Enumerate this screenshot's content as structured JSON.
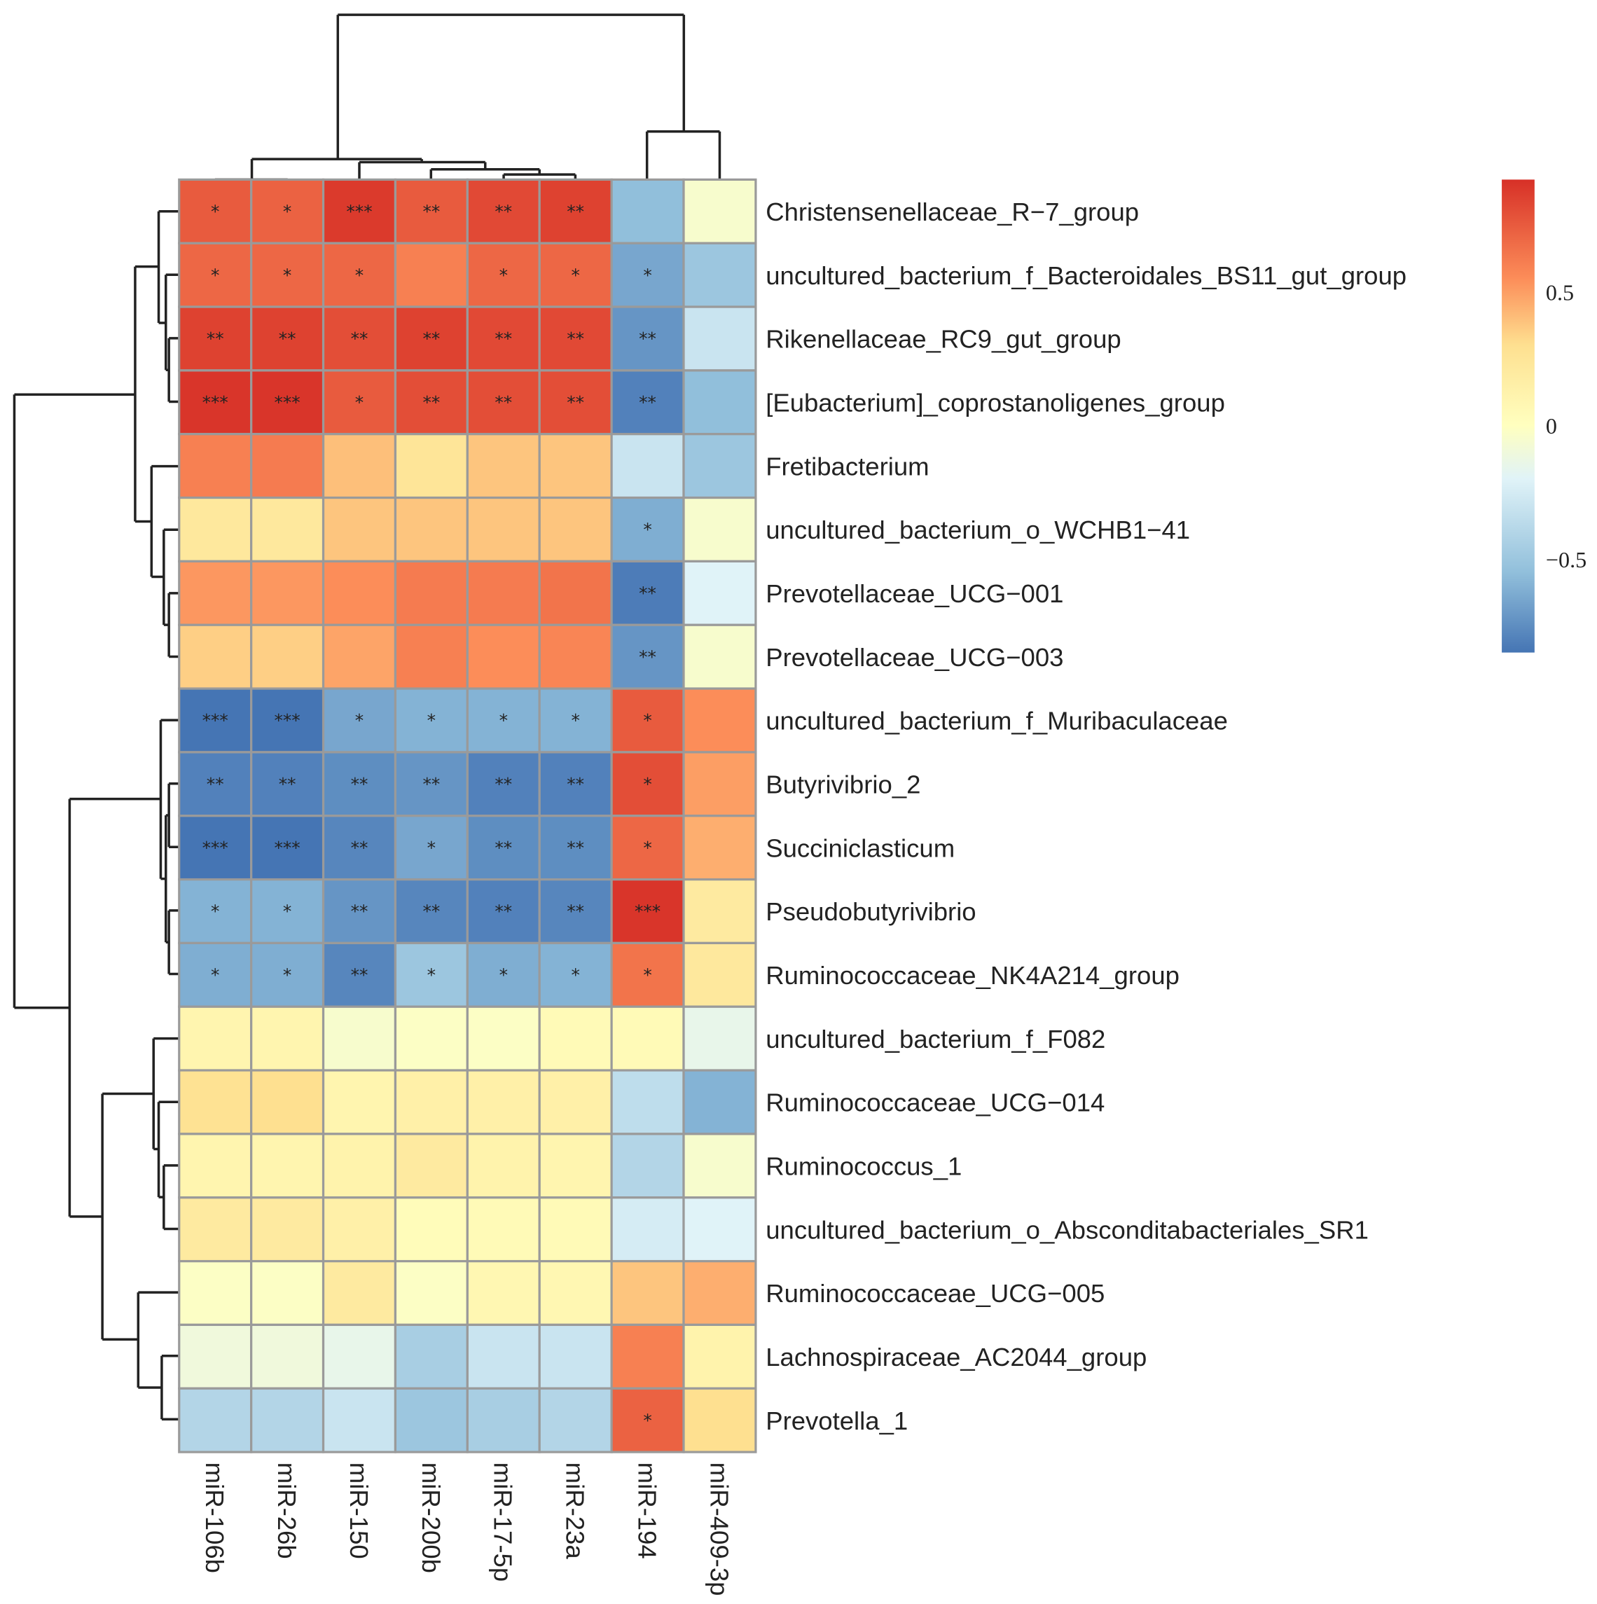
{
  "chart_data": {
    "type": "heatmap",
    "title": "",
    "columns": [
      "miR-106b",
      "miR-26b",
      "miR-150",
      "miR-200b",
      "miR-17-5p",
      "miR-23a",
      "miR-194",
      "miR-409-3p"
    ],
    "rows": [
      "Christensenellaceae_R−7_group",
      "uncultured_bacterium_f_Bacteroidales_BS11_gut_group",
      "Rikenellaceae_RC9_gut_group",
      "[Eubacterium]_coprostanoligenes_group",
      "Fretibacterium",
      "uncultured_bacterium_o_WCHB1−41",
      "Prevotellaceae_UCG−001",
      "Prevotellaceae_UCG−003",
      "uncultured_bacterium_f_Muribaculaceae",
      "Butyrivibrio_2",
      "Succiniclasticum",
      "Pseudobutyrivibrio",
      "Ruminococcaceae_NK4A214_group",
      "uncultured_bacterium_f_F082",
      "Ruminococcaceae_UCG−014",
      "Ruminococcus_1",
      "uncultured_bacterium_o_Absconditabacteriales_SR1",
      "Ruminococcaceae_UCG−005",
      "Lachnospiraceae_AC2044_group",
      "Prevotella_1"
    ],
    "values": [
      [
        0.75,
        0.72,
        0.88,
        0.75,
        0.82,
        0.85,
        -0.55,
        -0.05
      ],
      [
        0.7,
        0.7,
        0.7,
        0.6,
        0.7,
        0.7,
        -0.65,
        -0.5
      ],
      [
        0.85,
        0.85,
        0.8,
        0.85,
        0.82,
        0.82,
        -0.72,
        -0.3
      ],
      [
        0.9,
        0.9,
        0.75,
        0.8,
        0.8,
        0.8,
        -0.8,
        -0.55
      ],
      [
        0.6,
        0.62,
        0.4,
        0.25,
        0.38,
        0.38,
        -0.3,
        -0.5
      ],
      [
        0.22,
        0.22,
        0.38,
        0.38,
        0.38,
        0.38,
        -0.62,
        -0.05
      ],
      [
        0.52,
        0.52,
        0.55,
        0.62,
        0.62,
        0.65,
        -0.82,
        -0.2
      ],
      [
        0.35,
        0.35,
        0.48,
        0.6,
        0.55,
        0.58,
        -0.72,
        -0.05
      ],
      [
        -0.85,
        -0.85,
        -0.65,
        -0.6,
        -0.6,
        -0.6,
        0.75,
        0.55
      ],
      [
        -0.8,
        -0.8,
        -0.75,
        -0.72,
        -0.8,
        -0.8,
        0.8,
        0.5
      ],
      [
        -0.85,
        -0.85,
        -0.78,
        -0.65,
        -0.75,
        -0.75,
        0.7,
        0.45
      ],
      [
        -0.6,
        -0.6,
        -0.72,
        -0.78,
        -0.8,
        -0.78,
        0.9,
        0.2
      ],
      [
        -0.62,
        -0.62,
        -0.78,
        -0.5,
        -0.62,
        -0.6,
        0.65,
        0.22
      ],
      [
        0.1,
        0.1,
        -0.05,
        -0.02,
        -0.02,
        0.05,
        0.05,
        -0.15
      ],
      [
        0.28,
        0.3,
        0.1,
        0.15,
        0.15,
        0.15,
        -0.35,
        -0.6
      ],
      [
        0.1,
        0.1,
        0.12,
        0.2,
        0.12,
        0.1,
        -0.4,
        -0.05
      ],
      [
        0.2,
        0.2,
        0.15,
        0.03,
        0.05,
        0.05,
        -0.25,
        -0.2
      ],
      [
        -0.02,
        -0.02,
        0.2,
        -0.02,
        0.08,
        0.08,
        0.38,
        0.45
      ],
      [
        -0.1,
        -0.1,
        -0.15,
        -0.45,
        -0.3,
        -0.3,
        0.6,
        0.12
      ],
      [
        -0.4,
        -0.4,
        -0.3,
        -0.5,
        -0.45,
        -0.4,
        0.72,
        0.3
      ]
    ],
    "significance": [
      [
        "*",
        "*",
        "***",
        "**",
        "**",
        "**",
        "",
        ""
      ],
      [
        "*",
        "*",
        "*",
        "",
        "*",
        "*",
        "*",
        ""
      ],
      [
        "**",
        "**",
        "**",
        "**",
        "**",
        "**",
        "**",
        ""
      ],
      [
        "***",
        "***",
        "*",
        "**",
        "**",
        "**",
        "**",
        ""
      ],
      [
        "",
        "",
        "",
        "",
        "",
        "",
        "",
        ""
      ],
      [
        "",
        "",
        "",
        "",
        "",
        "",
        "*",
        ""
      ],
      [
        "",
        "",
        "",
        "",
        "",
        "",
        "**",
        ""
      ],
      [
        "",
        "",
        "",
        "",
        "",
        "",
        "**",
        ""
      ],
      [
        "***",
        "***",
        "*",
        "*",
        "*",
        "*",
        "*",
        ""
      ],
      [
        "**",
        "**",
        "**",
        "**",
        "**",
        "**",
        "*",
        ""
      ],
      [
        "***",
        "***",
        "**",
        "*",
        "**",
        "**",
        "*",
        ""
      ],
      [
        "*",
        "*",
        "**",
        "**",
        "**",
        "**",
        "***",
        ""
      ],
      [
        "*",
        "*",
        "**",
        "*",
        "*",
        "*",
        "*",
        ""
      ],
      [
        "",
        "",
        "",
        "",
        "",
        "",
        "",
        ""
      ],
      [
        "",
        "",
        "",
        "",
        "",
        "",
        "",
        ""
      ],
      [
        "",
        "",
        "",
        "",
        "",
        "",
        "",
        ""
      ],
      [
        "",
        "",
        "",
        "",
        "",
        "",
        "",
        ""
      ],
      [
        "",
        "",
        "",
        "",
        "",
        "",
        "",
        ""
      ],
      [
        "",
        "",
        "",
        "",
        "",
        "",
        "",
        ""
      ],
      [
        "",
        "",
        "",
        "",
        "",
        "",
        "*",
        ""
      ]
    ],
    "colorbar": {
      "ticks": [
        0.5,
        0,
        -0.5
      ],
      "tick_labels": [
        "0.5",
        "0",
        "−0.5"
      ],
      "range": [
        -0.85,
        0.92
      ],
      "colors": [
        "#4575b4",
        "#91bfdb",
        "#e0f3f8",
        "#ffffbf",
        "#fee090",
        "#fc8d59",
        "#d73027"
      ]
    },
    "legend_position": "top-right",
    "dendrograms": {
      "rows": true,
      "columns": true
    }
  }
}
